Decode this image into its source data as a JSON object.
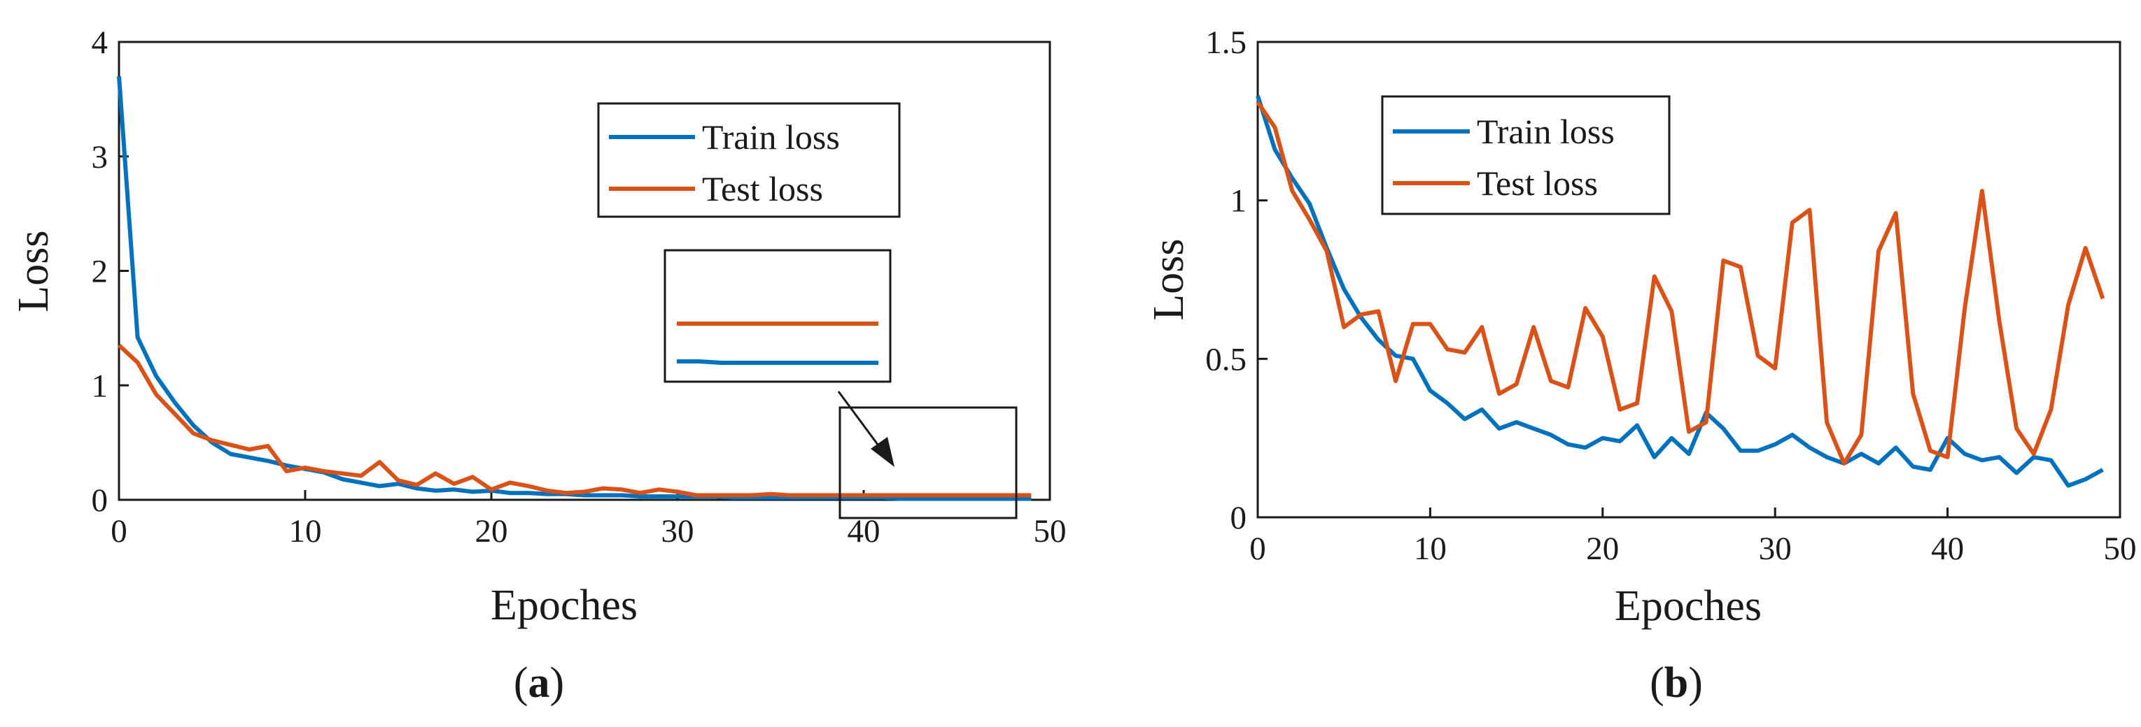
{
  "colors": {
    "train": "#0072BD",
    "test": "#D95319",
    "axis": "#1a1a1a",
    "bg": "#ffffff"
  },
  "chart_data": [
    {
      "type": "line",
      "panel_label": "a",
      "title": "",
      "xlabel": "Epoches",
      "ylabel": "Loss",
      "xlim": [
        0,
        50
      ],
      "ylim": [
        0,
        4
      ],
      "xticks": [
        0,
        10,
        20,
        30,
        40,
        50
      ],
      "yticks": [
        0,
        1,
        2,
        3,
        4
      ],
      "grid": false,
      "legend": "top-right",
      "x": [
        0,
        1,
        2,
        3,
        4,
        5,
        6,
        7,
        8,
        9,
        10,
        11,
        12,
        13,
        14,
        15,
        16,
        17,
        18,
        19,
        20,
        21,
        22,
        23,
        24,
        25,
        26,
        27,
        28,
        29,
        30,
        31,
        32,
        33,
        34,
        35,
        36,
        37,
        38,
        39,
        40,
        41,
        42,
        43,
        44,
        45,
        46,
        47,
        48,
        49
      ],
      "series": [
        {
          "name": "Train loss",
          "color": "#0072BD",
          "values": [
            3.7,
            1.42,
            1.08,
            0.85,
            0.65,
            0.5,
            0.4,
            0.37,
            0.34,
            0.3,
            0.27,
            0.24,
            0.18,
            0.15,
            0.12,
            0.14,
            0.1,
            0.08,
            0.09,
            0.07,
            0.08,
            0.06,
            0.06,
            0.05,
            0.05,
            0.04,
            0.04,
            0.04,
            0.03,
            0.03,
            0.03,
            0.03,
            0.03,
            0.02,
            0.02,
            0.02,
            0.02,
            0.02,
            0.02,
            0.02,
            0.02,
            0.02,
            0.01,
            0.01,
            0.01,
            0.01,
            0.01,
            0.01,
            0.01,
            0.01
          ]
        },
        {
          "name": "Test loss",
          "color": "#D95319",
          "values": [
            1.35,
            1.2,
            0.92,
            0.75,
            0.58,
            0.52,
            0.48,
            0.44,
            0.47,
            0.25,
            0.28,
            0.25,
            0.23,
            0.21,
            0.33,
            0.17,
            0.13,
            0.23,
            0.14,
            0.2,
            0.09,
            0.15,
            0.12,
            0.08,
            0.06,
            0.07,
            0.1,
            0.09,
            0.06,
            0.09,
            0.07,
            0.04,
            0.04,
            0.04,
            0.04,
            0.05,
            0.04,
            0.04,
            0.04,
            0.04,
            0.04,
            0.04,
            0.04,
            0.04,
            0.04,
            0.04,
            0.04,
            0.04,
            0.04,
            0.04
          ]
        }
      ],
      "annotations": "zoom inset of epochs 40-49 with arrow"
    },
    {
      "type": "line",
      "panel_label": "b",
      "title": "",
      "xlabel": "Epoches",
      "ylabel": "Loss",
      "xlim": [
        0,
        50
      ],
      "ylim": [
        0,
        1.5
      ],
      "xticks": [
        0,
        10,
        20,
        30,
        40,
        50
      ],
      "yticks": [
        0,
        0.5,
        1,
        1.5
      ],
      "ytick_labels": [
        "0",
        "0.5",
        "1",
        "1.5"
      ],
      "grid": false,
      "legend": "top-left",
      "x": [
        0,
        1,
        2,
        3,
        4,
        5,
        6,
        7,
        8,
        9,
        10,
        11,
        12,
        13,
        14,
        15,
        16,
        17,
        18,
        19,
        20,
        21,
        22,
        23,
        24,
        25,
        26,
        27,
        28,
        29,
        30,
        31,
        32,
        33,
        34,
        35,
        36,
        37,
        38,
        39,
        40,
        41,
        42,
        43,
        44,
        45,
        46,
        47,
        48,
        49
      ],
      "series": [
        {
          "name": "Train loss",
          "color": "#0072BD",
          "values": [
            1.33,
            1.16,
            1.07,
            0.99,
            0.85,
            0.72,
            0.63,
            0.56,
            0.51,
            0.5,
            0.4,
            0.36,
            0.31,
            0.34,
            0.28,
            0.3,
            0.28,
            0.26,
            0.23,
            0.22,
            0.25,
            0.24,
            0.29,
            0.19,
            0.25,
            0.2,
            0.33,
            0.28,
            0.21,
            0.21,
            0.23,
            0.26,
            0.22,
            0.19,
            0.17,
            0.2,
            0.17,
            0.22,
            0.16,
            0.15,
            0.25,
            0.2,
            0.18,
            0.19,
            0.14,
            0.19,
            0.18,
            0.1,
            0.12,
            0.15
          ]
        },
        {
          "name": "Test loss",
          "color": "#D95319",
          "values": [
            1.31,
            1.23,
            1.03,
            0.94,
            0.84,
            0.6,
            0.64,
            0.65,
            0.43,
            0.61,
            0.61,
            0.53,
            0.52,
            0.6,
            0.39,
            0.42,
            0.6,
            0.43,
            0.41,
            0.66,
            0.57,
            0.34,
            0.36,
            0.76,
            0.65,
            0.27,
            0.3,
            0.81,
            0.79,
            0.51,
            0.47,
            0.93,
            0.97,
            0.3,
            0.17,
            0.26,
            0.84,
            0.96,
            0.39,
            0.21,
            0.19,
            0.66,
            1.03,
            0.62,
            0.28,
            0.2,
            0.34,
            0.67,
            0.85,
            0.69
          ]
        }
      ]
    }
  ]
}
